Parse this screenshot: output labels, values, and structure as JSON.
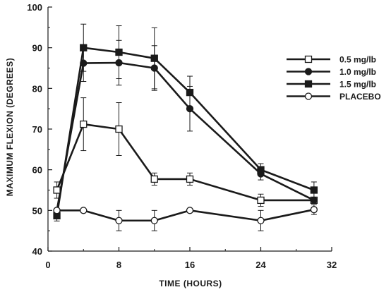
{
  "chart_data": {
    "type": "line",
    "xlabel": "TIME (HOURS)",
    "ylabel": "MAXIMUM  FLEXION  (DEGREES)",
    "xlim": [
      0,
      32
    ],
    "ylim": [
      40,
      100
    ],
    "xticks": [
      0,
      8,
      16,
      24,
      32
    ],
    "yticks": [
      40,
      50,
      60,
      70,
      80,
      90,
      100
    ],
    "grid": false,
    "legend_position": "right",
    "error_bars": true,
    "series": [
      {
        "name": "0.5 mg/lb",
        "marker": "open-square",
        "x": [
          1,
          4,
          8,
          12,
          16,
          24,
          30
        ],
        "y": [
          55,
          71.2,
          70,
          57.7,
          57.7,
          52.5,
          52.5
        ],
        "err": [
          2,
          6.5,
          6.5,
          1.5,
          1.5,
          1.5,
          0
        ]
      },
      {
        "name": "1.0 mg/lb",
        "marker": "filled-circle",
        "x": [
          1,
          4,
          8,
          12,
          16,
          24,
          30
        ],
        "y": [
          50,
          86.2,
          86.3,
          85,
          75,
          59,
          52.5
        ],
        "err": [
          0,
          4.5,
          5.5,
          5.5,
          5.5,
          1.5,
          0
        ]
      },
      {
        "name": "1.5 mg/lb",
        "marker": "filled-square",
        "x": [
          1,
          4,
          8,
          12,
          16,
          24,
          30
        ],
        "y": [
          48.7,
          90,
          88.9,
          87.4,
          79,
          60,
          55
        ],
        "err": [
          1.3,
          5.8,
          6.5,
          7.5,
          4,
          1.5,
          2
        ]
      },
      {
        "name": "PLACEBO",
        "marker": "open-circle",
        "x": [
          1,
          4,
          8,
          12,
          16,
          24,
          30
        ],
        "y": [
          50,
          50,
          47.5,
          47.5,
          50,
          47.5,
          50.2
        ],
        "err": [
          0,
          0,
          2.5,
          2.5,
          0,
          2.5,
          1.2
        ]
      }
    ]
  },
  "colors": {
    "ink": "#1a1a1a",
    "marker_fill_open": "#ffffff"
  }
}
